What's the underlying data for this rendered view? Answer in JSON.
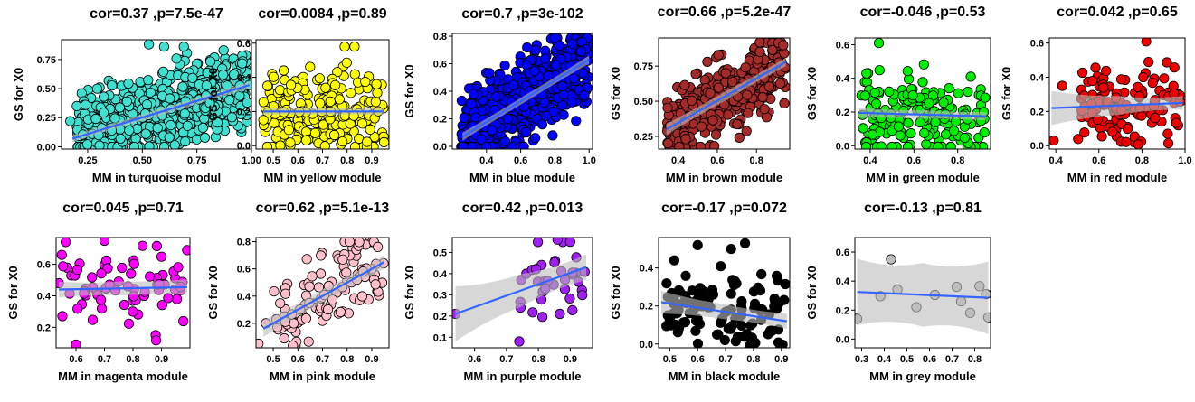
{
  "chart_data": [
    {
      "type": "scatter",
      "module": "turquoise",
      "color": "#40e0d0",
      "title": "cor=0.37 ,p=7.5e-47",
      "xlabel": "MM in turquoise modul",
      "ylabel": "GS for  X0",
      "xlim": [
        0.13,
        1.0
      ],
      "ylim": [
        -0.02,
        0.92
      ],
      "xticks": [
        0.25,
        0.5,
        0.75,
        1.0
      ],
      "xticklabels": [
        "0.25",
        "0.50",
        "0.75",
        "1.00"
      ],
      "yticks": [
        0.0,
        0.25,
        0.5,
        0.75
      ],
      "yticklabels": [
        "0.00",
        "0.25",
        "0.50",
        "0.75"
      ],
      "n": 700,
      "xrange": [
        0.2,
        0.98
      ],
      "fit": {
        "x": [
          0.18,
          0.99
        ],
        "y": [
          0.07,
          0.53
        ]
      },
      "ci": [
        0.03,
        0.015,
        0.03
      ],
      "points": [
        [
          0.17,
          0.22
        ],
        [
          0.2,
          0.35
        ],
        [
          0.24,
          0.36
        ],
        [
          0.3,
          0.1
        ],
        [
          0.98,
          0.38
        ],
        [
          0.36,
          0.14
        ],
        [
          0.4,
          0.07
        ],
        [
          0.44,
          0.14
        ],
        [
          0.53,
          0.88
        ],
        [
          0.6,
          0.86
        ],
        [
          0.69,
          0.86
        ],
        [
          0.99,
          0.53
        ]
      ]
    },
    {
      "type": "scatter",
      "module": "yellow",
      "color": "#ffff00",
      "title": "cor=0.0084 ,p=0.89",
      "xlabel": "MM in yellow module",
      "ylabel": "GS for  X0",
      "xlim": [
        0.43,
        0.97
      ],
      "ylim": [
        -0.02,
        0.62
      ],
      "xticks": [
        0.5,
        0.6,
        0.7,
        0.8,
        0.9
      ],
      "xticklabels": [
        "0.5",
        "0.6",
        "0.7",
        "0.8",
        "0.9"
      ],
      "yticks": [
        0.0,
        0.2,
        0.4,
        0.6
      ],
      "yticklabels": [
        "0.0",
        "0.2",
        "0.4",
        "0.6"
      ],
      "n": 230,
      "xrange": [
        0.46,
        0.95
      ],
      "fit": {
        "x": [
          0.46,
          0.95
        ],
        "y": [
          0.2,
          0.2
        ]
      },
      "ci": [
        0.02,
        0.01,
        0.02
      ],
      "points": [
        [
          0.79,
          0.58
        ],
        [
          0.83,
          0.58
        ],
        [
          0.46,
          0.15
        ],
        [
          0.95,
          0.02
        ]
      ]
    },
    {
      "type": "scatter",
      "module": "blue",
      "color": "#0000ff",
      "title": "cor=0.7 ,p=3e-102",
      "xlabel": "MM in blue module",
      "ylabel": "GS for  X0",
      "xlim": [
        0.2,
        1.02
      ],
      "ylim": [
        -0.02,
        0.82
      ],
      "xticks": [
        0.4,
        0.6,
        0.8,
        1.0
      ],
      "xticklabels": [
        "0.4",
        "0.6",
        "0.8",
        "1.0"
      ],
      "yticks": [
        0.0,
        0.2,
        0.4,
        0.6,
        0.8
      ],
      "yticklabels": [
        "0.0",
        "0.2",
        "0.4",
        "0.6",
        "0.8"
      ],
      "n": 650,
      "xrange": [
        0.25,
        1.0
      ],
      "fit": {
        "x": [
          0.26,
          1.0
        ],
        "y": [
          0.07,
          0.63
        ]
      },
      "ci": [
        0.03,
        0.01,
        0.03
      ],
      "points": []
    },
    {
      "type": "scatter",
      "module": "brown",
      "color": "#a52a2a",
      "title": "cor=0.66 ,p=5.2e-47",
      "xlabel": "MM in brown module",
      "ylabel": "GS for  X0",
      "xlim": [
        0.3,
        0.97
      ],
      "ylim": [
        0.16,
        0.95
      ],
      "xticks": [
        0.4,
        0.6,
        0.8
      ],
      "xticklabels": [
        "0.4",
        "0.6",
        "0.8"
      ],
      "yticks": [
        0.25,
        0.5,
        0.75
      ],
      "yticklabels": [
        "0.25",
        "0.50",
        "0.75"
      ],
      "n": 330,
      "xrange": [
        0.34,
        0.95
      ],
      "fit": {
        "x": [
          0.34,
          0.95
        ],
        "y": [
          0.3,
          0.78
        ]
      },
      "ci": [
        0.04,
        0.015,
        0.03
      ],
      "points": []
    },
    {
      "type": "scatter",
      "module": "green",
      "color": "#00ee00",
      "title": "cor=-0.046 ,p=0.53",
      "xlabel": "MM in green module",
      "ylabel": "GS for  X0",
      "xlim": [
        0.33,
        0.95
      ],
      "ylim": [
        -0.02,
        0.64
      ],
      "xticks": [
        0.4,
        0.6,
        0.8
      ],
      "xticklabels": [
        "0.4",
        "0.6",
        "0.8"
      ],
      "yticks": [
        0.0,
        0.2,
        0.4,
        0.6
      ],
      "yticklabels": [
        "0.0",
        "0.2",
        "0.4",
        "0.6"
      ],
      "n": 180,
      "xrange": [
        0.36,
        0.93
      ],
      "fit": {
        "x": [
          0.35,
          0.93
        ],
        "y": [
          0.195,
          0.175
        ]
      },
      "ci": [
        0.03,
        0.012,
        0.025
      ],
      "points": [
        [
          0.44,
          0.61
        ]
      ]
    },
    {
      "type": "scatter",
      "module": "red",
      "color": "#ee0000",
      "title": "cor=0.042 ,p=0.65",
      "xlabel": "MM in red module",
      "ylabel": "GS for  X0",
      "xlim": [
        0.37,
        1.0
      ],
      "ylim": [
        -0.02,
        0.63
      ],
      "xticks": [
        0.4,
        0.6,
        0.8,
        1.0
      ],
      "xticklabels": [
        "0.4",
        "0.6",
        "0.8",
        "1.0"
      ],
      "yticks": [
        0.0,
        0.2,
        0.4,
        0.6
      ],
      "yticklabels": [
        "0.0",
        "0.2",
        "0.4",
        "0.6"
      ],
      "n": 115,
      "xrange": [
        0.5,
        0.99
      ],
      "fit": {
        "x": [
          0.38,
          0.99
        ],
        "y": [
          0.22,
          0.25
        ]
      },
      "ci": [
        0.1,
        0.02,
        0.04
      ],
      "points": [
        [
          0.39,
          0.03
        ],
        [
          0.43,
          0.35
        ],
        [
          0.82,
          0.61
        ]
      ]
    },
    {
      "type": "scatter",
      "module": "magenta",
      "color": "#ff00ff",
      "title": "cor=0.045 ,p=0.71",
      "xlabel": "MM in magenta module",
      "ylabel": "GS for  X0",
      "xlim": [
        0.53,
        1.0
      ],
      "ylim": [
        0.07,
        0.77
      ],
      "xticks": [
        0.6,
        0.7,
        0.8,
        0.9
      ],
      "xticklabels": [
        "0.6",
        "0.7",
        "0.8",
        "0.9"
      ],
      "yticks": [
        0.2,
        0.4,
        0.6
      ],
      "yticklabels": [
        "0.2",
        "0.4",
        "0.6"
      ],
      "n": 70,
      "xrange": [
        0.55,
        0.99
      ],
      "fit": {
        "x": [
          0.54,
          0.99
        ],
        "y": [
          0.44,
          0.455
        ]
      },
      "ci": [
        0.05,
        0.02,
        0.05
      ],
      "points": [
        [
          0.54,
          0.48
        ],
        [
          0.55,
          0.66
        ],
        [
          0.6,
          0.09
        ],
        [
          0.7,
          0.75
        ],
        [
          0.99,
          0.69
        ]
      ]
    },
    {
      "type": "scatter",
      "module": "pink",
      "color": "#ffc0cb",
      "title": "cor=0.62 ,p=5.1e-13",
      "xlabel": "MM in pink module",
      "ylabel": "GS for  X0",
      "xlim": [
        0.43,
        0.97
      ],
      "ylim": [
        0.02,
        0.83
      ],
      "xticks": [
        0.5,
        0.6,
        0.7,
        0.8,
        0.9
      ],
      "xticklabels": [
        "0.5",
        "0.6",
        "0.7",
        "0.8",
        "0.9"
      ],
      "yticks": [
        0.2,
        0.4,
        0.6,
        0.8
      ],
      "yticklabels": [
        "0.2",
        "0.4",
        "0.6",
        "0.8"
      ],
      "n": 110,
      "xrange": [
        0.5,
        0.95
      ],
      "fit": {
        "x": [
          0.46,
          0.95
        ],
        "y": [
          0.16,
          0.65
        ]
      },
      "ci": [
        0.06,
        0.02,
        0.05
      ],
      "points": [
        [
          0.44,
          0.05
        ],
        [
          0.47,
          0.2
        ],
        [
          0.79,
          0.8
        ],
        [
          0.81,
          0.8
        ]
      ]
    },
    {
      "type": "scatter",
      "module": "purple",
      "color": "#a020f0",
      "title": "cor=0.42 ,p=0.013",
      "xlabel": "MM in purple module",
      "ylabel": "GS for  X0",
      "xlim": [
        0.53,
        0.97
      ],
      "ylim": [
        0.05,
        0.57
      ],
      "xticks": [
        0.6,
        0.7,
        0.8,
        0.9
      ],
      "xticklabels": [
        "0.6",
        "0.7",
        "0.8",
        "0.9"
      ],
      "yticks": [
        0.1,
        0.2,
        0.3,
        0.4,
        0.5
      ],
      "yticklabels": [
        "0.1",
        "0.2",
        "0.3",
        "0.4",
        "0.5"
      ],
      "n": 34,
      "xrange": [
        0.74,
        0.95
      ],
      "fit": {
        "x": [
          0.54,
          0.95
        ],
        "y": [
          0.21,
          0.43
        ]
      },
      "ci": [
        0.13,
        0.03,
        0.06
      ],
      "points": [
        [
          0.54,
          0.21
        ],
        [
          0.74,
          0.08
        ],
        [
          0.86,
          0.56
        ],
        [
          0.9,
          0.55
        ]
      ]
    },
    {
      "type": "scatter",
      "module": "black",
      "color": "#000000",
      "title": "cor=-0.17 ,p=0.072",
      "xlabel": "MM in black module",
      "ylabel": "GS for  X0",
      "xlim": [
        0.46,
        0.93
      ],
      "ylim": [
        -0.02,
        0.56
      ],
      "xticks": [
        0.5,
        0.6,
        0.7,
        0.8,
        0.9
      ],
      "xticklabels": [
        "0.5",
        "0.6",
        "0.7",
        "0.8",
        "0.9"
      ],
      "yticks": [
        0.0,
        0.2,
        0.4
      ],
      "yticklabels": [
        "0.0",
        "0.2",
        "0.4"
      ],
      "n": 115,
      "xrange": [
        0.48,
        0.92
      ],
      "fit": {
        "x": [
          0.47,
          0.92
        ],
        "y": [
          0.22,
          0.12
        ]
      },
      "ci": [
        0.06,
        0.015,
        0.04
      ],
      "points": [
        [
          0.6,
          0.52
        ],
        [
          0.77,
          0.53
        ],
        [
          0.72,
          0.5
        ]
      ]
    },
    {
      "type": "scatter",
      "module": "grey",
      "color": "#bebebe",
      "title": "cor=-0.13 ,p=0.81",
      "xlabel": "MM in grey module",
      "ylabel": "GS for  X0",
      "xlim": [
        0.27,
        0.87
      ],
      "ylim": [
        -0.06,
        0.7
      ],
      "xticks": [
        0.3,
        0.4,
        0.5,
        0.6,
        0.7,
        0.8
      ],
      "xticklabels": [
        "0.3",
        "0.4",
        "0.5",
        "0.6",
        "0.7",
        "0.8"
      ],
      "yticks": [
        0.0,
        0.2,
        0.4,
        0.6
      ],
      "yticklabels": [
        "0.0",
        "0.2",
        "0.4",
        "0.6"
      ],
      "n": 6,
      "xrange": [
        0.28,
        0.86
      ],
      "fit": {
        "x": [
          0.28,
          0.86
        ],
        "y": [
          0.325,
          0.285
        ]
      },
      "ci": [
        0.23,
        0.1,
        0.25
      ],
      "points": [
        [
          0.28,
          0.14
        ],
        [
          0.43,
          0.55
        ],
        [
          0.72,
          0.36
        ],
        [
          0.74,
          0.26
        ],
        [
          0.85,
          0.31
        ],
        [
          0.86,
          0.15
        ]
      ]
    }
  ]
}
